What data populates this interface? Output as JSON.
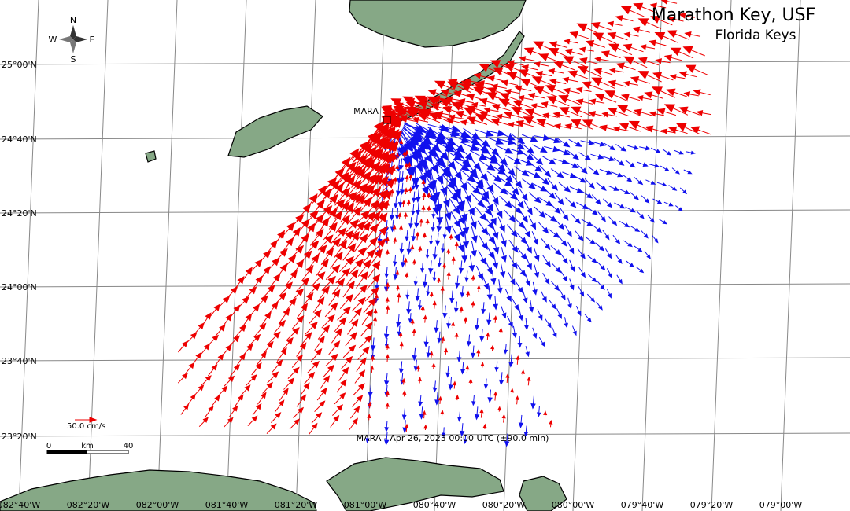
{
  "header": {
    "title": "Marathon Key, USF",
    "subtitle": "Florida Keys"
  },
  "compass": {
    "n": "N",
    "e": "E",
    "s": "S",
    "w": "W"
  },
  "station": {
    "label": "MARA"
  },
  "scale": {
    "vector_label": "50.0 cm/s",
    "km_start": "0",
    "km_unit": "km",
    "km_end": "40"
  },
  "footer": "MARA - Apr 26, 2023 00:00 UTC (±90.0 min)",
  "lat_labels": [
    "25°00'N",
    "24°40'N",
    "24°20'N",
    "24°00'N",
    "23°40'N",
    "23°20'N"
  ],
  "lon_labels": [
    "082°40'W",
    "082°20'W",
    "082°00'W",
    "081°40'W",
    "081°20'W",
    "081°00'W",
    "080°40'W",
    "080°20'W",
    "080°00'W",
    "079°40'W",
    "079°20'W",
    "079°00'W"
  ]
}
